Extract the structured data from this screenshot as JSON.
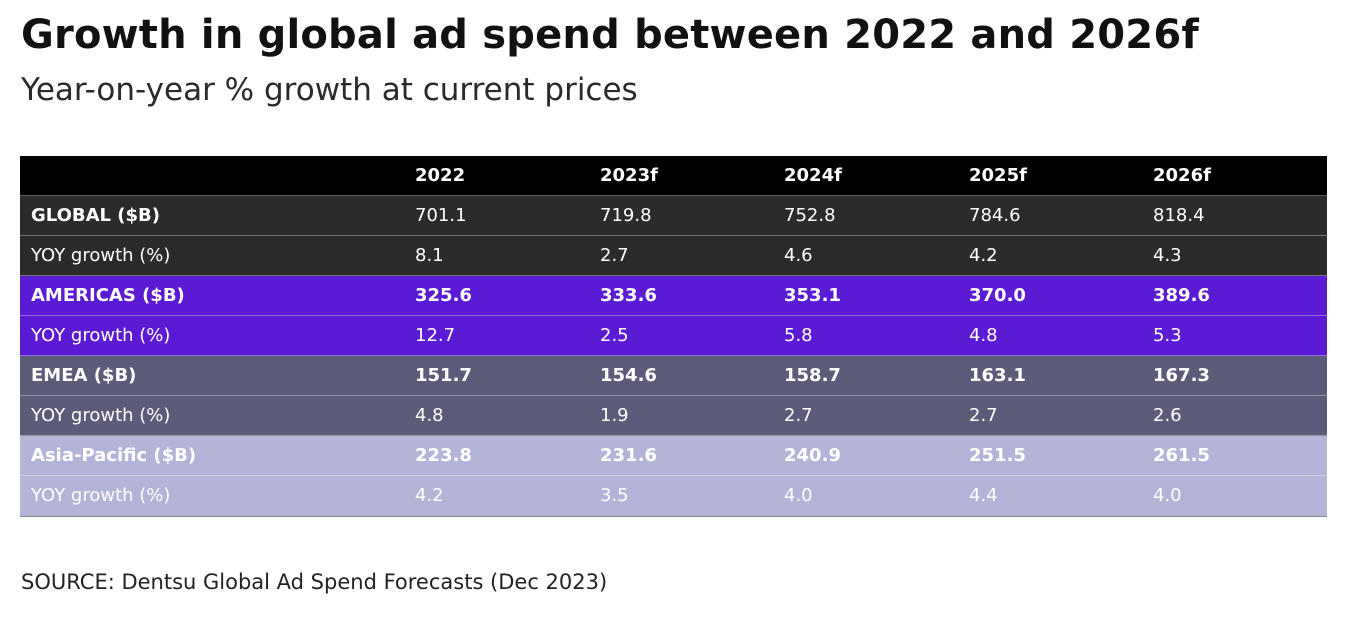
{
  "chart_data": {
    "type": "table",
    "title": "Growth in global ad spend between 2022 and 2026f",
    "subtitle": "Year-on-year % growth at current prices",
    "columns": [
      "2022",
      "2023f",
      "2024f",
      "2025f",
      "2026f"
    ],
    "rows": [
      {
        "label": "GLOBAL ($B)",
        "values": [
          "701.1",
          "719.8",
          "752.8",
          "784.6",
          "818.4"
        ]
      },
      {
        "label": "YOY growth (%)",
        "values": [
          "8.1",
          "2.7",
          "4.6",
          "4.2",
          "4.3"
        ]
      },
      {
        "label": "AMERICAS ($B)",
        "values": [
          "325.6",
          "333.6",
          "353.1",
          "370.0",
          "389.6"
        ]
      },
      {
        "label": "YOY growth (%)",
        "values": [
          "12.7",
          "2.5",
          "5.8",
          "4.8",
          "5.3"
        ]
      },
      {
        "label": "EMEA ($B)",
        "values": [
          "151.7",
          "154.6",
          "158.7",
          "163.1",
          "167.3"
        ]
      },
      {
        "label": "YOY growth (%)",
        "values": [
          "4.8",
          "1.9",
          "2.7",
          "2.7",
          "2.6"
        ]
      },
      {
        "label": "Asia-Pacific ($B)",
        "values": [
          "223.8",
          "231.6",
          "240.9",
          "251.5",
          "261.5"
        ]
      },
      {
        "label": "YOY growth (%)",
        "values": [
          "4.2",
          "3.5",
          "4.0",
          "4.4",
          "4.0"
        ]
      }
    ],
    "source": "SOURCE: Dentsu Global Ad Spend Forecasts (Dec 2023)",
    "colors": {
      "header": "#000000",
      "global": "#2b2b2b",
      "americas": "#5b1ad3",
      "emea": "#5c5c7a",
      "asia_pacific": "#b4b3d8"
    }
  }
}
